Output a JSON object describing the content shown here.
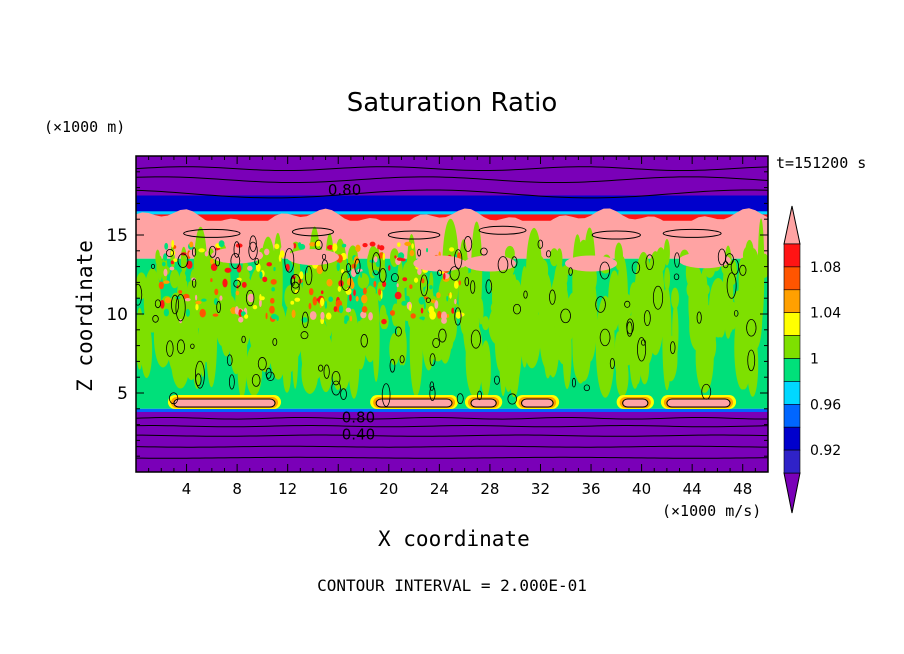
{
  "chart_data": {
    "type": "heatmap",
    "title": "Saturation Ratio",
    "xlabel": "X coordinate",
    "ylabel": "Z coordinate",
    "x_unit": "(×1000 m/s)",
    "y_unit": "(×1000 m)",
    "time_label": "t=151200 s",
    "footer": "CONTOUR INTERVAL = 2.000E-01",
    "xlim": [
      0,
      50
    ],
    "ylim": [
      0,
      20
    ],
    "x_ticks": [
      4,
      8,
      12,
      16,
      20,
      24,
      28,
      32,
      36,
      40,
      44,
      48
    ],
    "y_ticks": [
      5,
      10,
      15
    ],
    "colorbar": {
      "levels": [
        0.92,
        0.94,
        0.96,
        0.98,
        1,
        1.02,
        1.04,
        1.06,
        1.08,
        1.1
      ],
      "tick_labels": [
        "1.08",
        "1.04",
        "1",
        "0.96",
        "0.92"
      ],
      "tick_values": [
        1.08,
        1.04,
        1.0,
        0.96,
        0.92
      ],
      "colors": [
        "#7a00b8",
        "#2f22c8",
        "#0000cc",
        "#0066ff",
        "#00d8ff",
        "#00e07a",
        "#7ee000",
        "#ffff00",
        "#ffa000",
        "#ff5500",
        "#ff1414",
        "#ffa3a3"
      ],
      "extend": "both"
    },
    "contour_labels": [
      {
        "text": "0.80",
        "x": 16.5,
        "z": 17.8
      },
      {
        "text": "0.80",
        "x": 17.6,
        "z": 3.4
      },
      {
        "text": "0.40",
        "x": 17.6,
        "z": 2.3
      }
    ],
    "fields": {
      "z_top_dry": [
        17.5,
        20
      ],
      "z_supersat_band": [
        13.5,
        16.3
      ],
      "z_mid_cloud": [
        4.0,
        13.5
      ],
      "z_bottom_dry": [
        0,
        3.8
      ],
      "low_supersat_patches": [
        {
          "x0": 3.0,
          "x1": 11.0,
          "z": 4.3
        },
        {
          "x0": 19.0,
          "x1": 25.0,
          "z": 4.3
        },
        {
          "x0": 26.5,
          "x1": 28.5,
          "z": 4.3
        },
        {
          "x0": 30.5,
          "x1": 33.0,
          "z": 4.3
        },
        {
          "x0": 38.5,
          "x1": 40.5,
          "z": 4.3
        },
        {
          "x0": 42.0,
          "x1": 47.0,
          "z": 4.3
        }
      ]
    }
  }
}
